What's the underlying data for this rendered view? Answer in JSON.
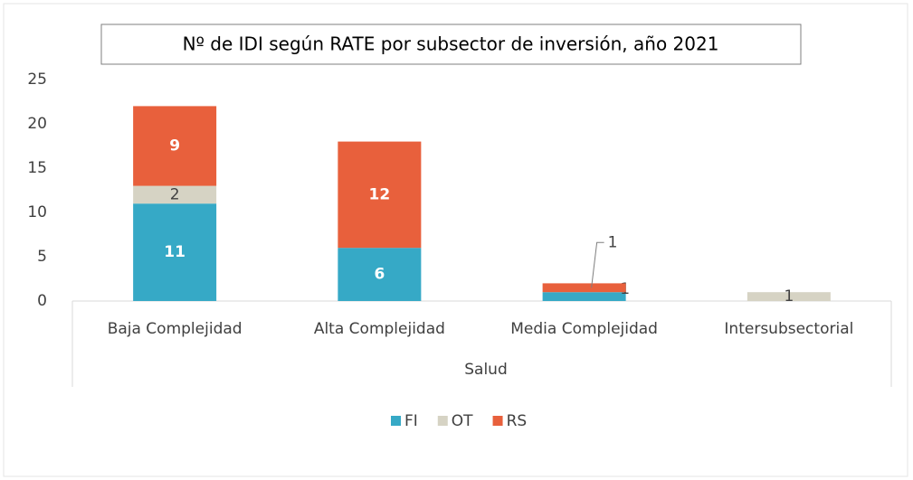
{
  "chart_data": {
    "type": "stacked_bar",
    "title": "Nº de IDI según RATE por subsector de inversión, año 2021",
    "categories": [
      "Baja Complejidad",
      "Alta Complejidad",
      "Media Complejidad",
      "Intersubsectorial"
    ],
    "x_group_label": "Salud",
    "series": [
      {
        "name": "FI",
        "color": "#36a9c6",
        "values": [
          11,
          6,
          1,
          null
        ]
      },
      {
        "name": "OT",
        "color": "#d6d3c4",
        "values": [
          2,
          null,
          null,
          1
        ]
      },
      {
        "name": "RS",
        "color": "#e8603c",
        "values": [
          9,
          12,
          1,
          null
        ]
      }
    ],
    "ylim": [
      0,
      25
    ],
    "yticks": [
      0,
      5,
      10,
      15,
      20,
      25
    ],
    "grid": false,
    "legend": "bottom"
  }
}
